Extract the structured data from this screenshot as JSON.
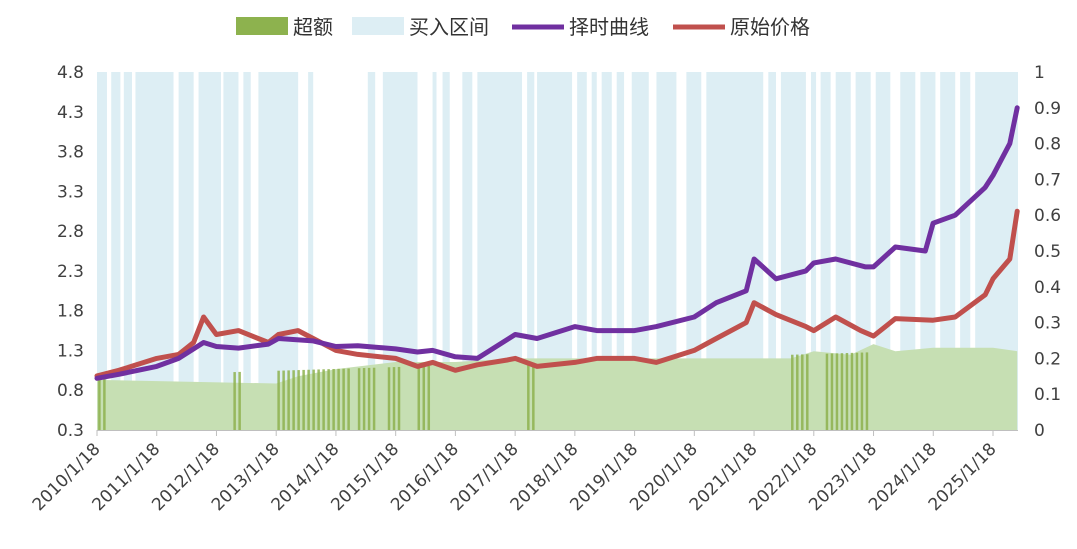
{
  "chart_data": {
    "type": "line",
    "title": "",
    "xlabel": "",
    "ylabel": "",
    "y2label": "",
    "ylim": [
      0.3,
      4.8
    ],
    "y2lim": [
      0,
      1
    ],
    "grid": false,
    "legend_position": "top",
    "x_tick_labels": [
      "2010/1/18",
      "2011/1/18",
      "2012/1/18",
      "2013/1/18",
      "2014/1/18",
      "2015/1/18",
      "2016/1/18",
      "2017/1/18",
      "2018/1/18",
      "2019/1/18",
      "2020/1/18",
      "2021/1/18",
      "2022/1/18",
      "2023/1/18",
      "2024/1/18",
      "2025/1/18"
    ],
    "y_tick_labels": [
      "4.8",
      "4.3",
      "3.8",
      "3.3",
      "2.8",
      "2.3",
      "1.8",
      "1.3",
      "0.8",
      "0.3"
    ],
    "y2_tick_labels": [
      "1",
      "0.9",
      "0.8",
      "0.7",
      "0.6",
      "0.5",
      "0.4",
      "0.3",
      "0.2",
      "0.1",
      "0"
    ],
    "legend": [
      {
        "name": "超额",
        "kind": "area",
        "color": "#8db24e"
      },
      {
        "name": "买入区间",
        "kind": "area",
        "color": "#ddeef4"
      },
      {
        "name": "择时曲线",
        "kind": "line",
        "color": "#7030a0"
      },
      {
        "name": "原始价格",
        "kind": "line",
        "color": "#c0504d"
      }
    ],
    "buy_intervals": [
      [
        "2010/1/18",
        "2010/3/20"
      ],
      [
        "2010/4/15",
        "2010/6/10"
      ],
      [
        "2010/7/1",
        "2010/8/20"
      ],
      [
        "2010/9/10",
        "2011/5/1"
      ],
      [
        "2011/6/1",
        "2011/9/1"
      ],
      [
        "2011/10/1",
        "2012/2/15"
      ],
      [
        "2012/3/1",
        "2012/6/1"
      ],
      [
        "2012/7/1",
        "2012/8/15"
      ],
      [
        "2012/10/1",
        "2013/6/1"
      ],
      [
        "2013/8/1",
        "2013/9/1"
      ],
      [
        "2014/8/1",
        "2014/9/15"
      ],
      [
        "2014/11/1",
        "2015/6/1"
      ],
      [
        "2015/9/1",
        "2015/9/25"
      ],
      [
        "2015/11/1",
        "2015/12/15"
      ],
      [
        "2016/3/1",
        "2016/5/1"
      ],
      [
        "2016/6/1",
        "2017/3/1"
      ],
      [
        "2017/4/1",
        "2017/5/15"
      ],
      [
        "2017/6/1",
        "2018/1/1"
      ],
      [
        "2018/2/1",
        "2018/4/1"
      ],
      [
        "2018/5/1",
        "2018/6/1"
      ],
      [
        "2018/7/1",
        "2018/9/1"
      ],
      [
        "2018/10/1",
        "2018/11/15"
      ],
      [
        "2019/1/1",
        "2019/4/15"
      ],
      [
        "2019/6/1",
        "2019/10/1"
      ],
      [
        "2019/12/1",
        "2020/3/1"
      ],
      [
        "2020/4/1",
        "2021/3/15"
      ],
      [
        "2021/4/15",
        "2021/6/1"
      ],
      [
        "2021/7/1",
        "2021/12/1"
      ],
      [
        "2022/1/1",
        "2022/2/1"
      ],
      [
        "2022/3/1",
        "2022/5/1"
      ],
      [
        "2022/6/1",
        "2022/9/1"
      ],
      [
        "2022/10/1",
        "2023/1/1"
      ],
      [
        "2023/2/1",
        "2023/5/1"
      ],
      [
        "2023/7/1",
        "2023/10/1"
      ],
      [
        "2023/11/1",
        "2024/2/1"
      ],
      [
        "2024/3/1",
        "2024/6/1"
      ],
      [
        "2024/7/1",
        "2024/9/1"
      ],
      [
        "2024/10/1",
        "2025/7/1"
      ]
    ],
    "series": [
      {
        "name": "原始价格",
        "axis": "left",
        "color": "#c0504d",
        "x": [
          "2010/1/18",
          "2010/6/1",
          "2011/1/18",
          "2011/6/1",
          "2011/9/1",
          "2011/11/1",
          "2012/1/18",
          "2012/6/1",
          "2012/12/1",
          "2013/2/1",
          "2013/6/1",
          "2013/9/1",
          "2014/1/18",
          "2014/6/1",
          "2015/1/18",
          "2015/6/1",
          "2015/9/1",
          "2016/1/18",
          "2016/6/1",
          "2016/12/1",
          "2017/1/18",
          "2017/6/1",
          "2018/1/18",
          "2018/6/1",
          "2019/1/18",
          "2019/6/1",
          "2020/1/18",
          "2020/6/1",
          "2020/12/1",
          "2021/1/18",
          "2021/6/1",
          "2021/12/1",
          "2022/1/18",
          "2022/6/1",
          "2022/11/1",
          "2023/1/18",
          "2023/6/1",
          "2024/1/18",
          "2024/6/1",
          "2024/12/1",
          "2025/1/18",
          "2025/5/1",
          "2025/6/15"
        ],
        "values": [
          0.98,
          1.05,
          1.2,
          1.25,
          1.4,
          1.72,
          1.5,
          1.55,
          1.4,
          1.5,
          1.55,
          1.45,
          1.3,
          1.25,
          1.2,
          1.1,
          1.15,
          1.05,
          1.12,
          1.18,
          1.2,
          1.1,
          1.15,
          1.2,
          1.2,
          1.15,
          1.3,
          1.45,
          1.65,
          1.9,
          1.75,
          1.6,
          1.55,
          1.72,
          1.55,
          1.48,
          1.7,
          1.68,
          1.72,
          2.0,
          2.2,
          2.45,
          3.05
        ]
      },
      {
        "name": "择时曲线",
        "axis": "left",
        "color": "#7030a0",
        "x": [
          "2010/1/18",
          "2010/6/1",
          "2011/1/18",
          "2011/6/1",
          "2011/11/1",
          "2012/1/18",
          "2012/6/1",
          "2012/12/1",
          "2013/2/1",
          "2013/9/1",
          "2014/1/18",
          "2014/6/1",
          "2015/1/18",
          "2015/6/1",
          "2015/9/1",
          "2016/1/18",
          "2016/6/1",
          "2017/1/18",
          "2017/6/1",
          "2018/1/18",
          "2018/6/1",
          "2019/1/18",
          "2019/6/1",
          "2020/1/18",
          "2020/6/1",
          "2020/12/1",
          "2021/1/18",
          "2021/6/1",
          "2021/12/1",
          "2022/1/18",
          "2022/6/1",
          "2022/12/1",
          "2023/1/18",
          "2023/6/1",
          "2023/12/1",
          "2024/1/18",
          "2024/6/1",
          "2024/12/1",
          "2025/1/18",
          "2025/5/1",
          "2025/6/15"
        ],
        "values": [
          0.95,
          1.0,
          1.1,
          1.2,
          1.4,
          1.35,
          1.33,
          1.38,
          1.45,
          1.42,
          1.35,
          1.36,
          1.32,
          1.28,
          1.3,
          1.22,
          1.2,
          1.5,
          1.45,
          1.6,
          1.55,
          1.55,
          1.6,
          1.72,
          1.9,
          2.05,
          2.45,
          2.2,
          2.3,
          2.4,
          2.45,
          2.35,
          2.35,
          2.6,
          2.55,
          2.9,
          3.0,
          3.35,
          3.5,
          3.9,
          4.35
        ]
      },
      {
        "name": "超额",
        "axis": "right",
        "color": "#8db24e",
        "x": [
          "2010/1/18",
          "2013/1/18",
          "2013/6/1",
          "2014/1/18",
          "2015/1/18",
          "2016/1/18",
          "2017/1/18",
          "2018/1/18",
          "2019/1/18",
          "2020/1/18",
          "2021/1/18",
          "2021/9/1",
          "2022/1/18",
          "2022/9/1",
          "2023/1/18",
          "2023/6/1",
          "2024/1/18",
          "2025/1/18",
          "2025/6/15"
        ],
        "values": [
          0.14,
          0.13,
          0.15,
          0.17,
          0.19,
          0.19,
          0.2,
          0.2,
          0.2,
          0.2,
          0.2,
          0.2,
          0.22,
          0.21,
          0.24,
          0.22,
          0.23,
          0.23,
          0.22
        ]
      }
    ]
  }
}
